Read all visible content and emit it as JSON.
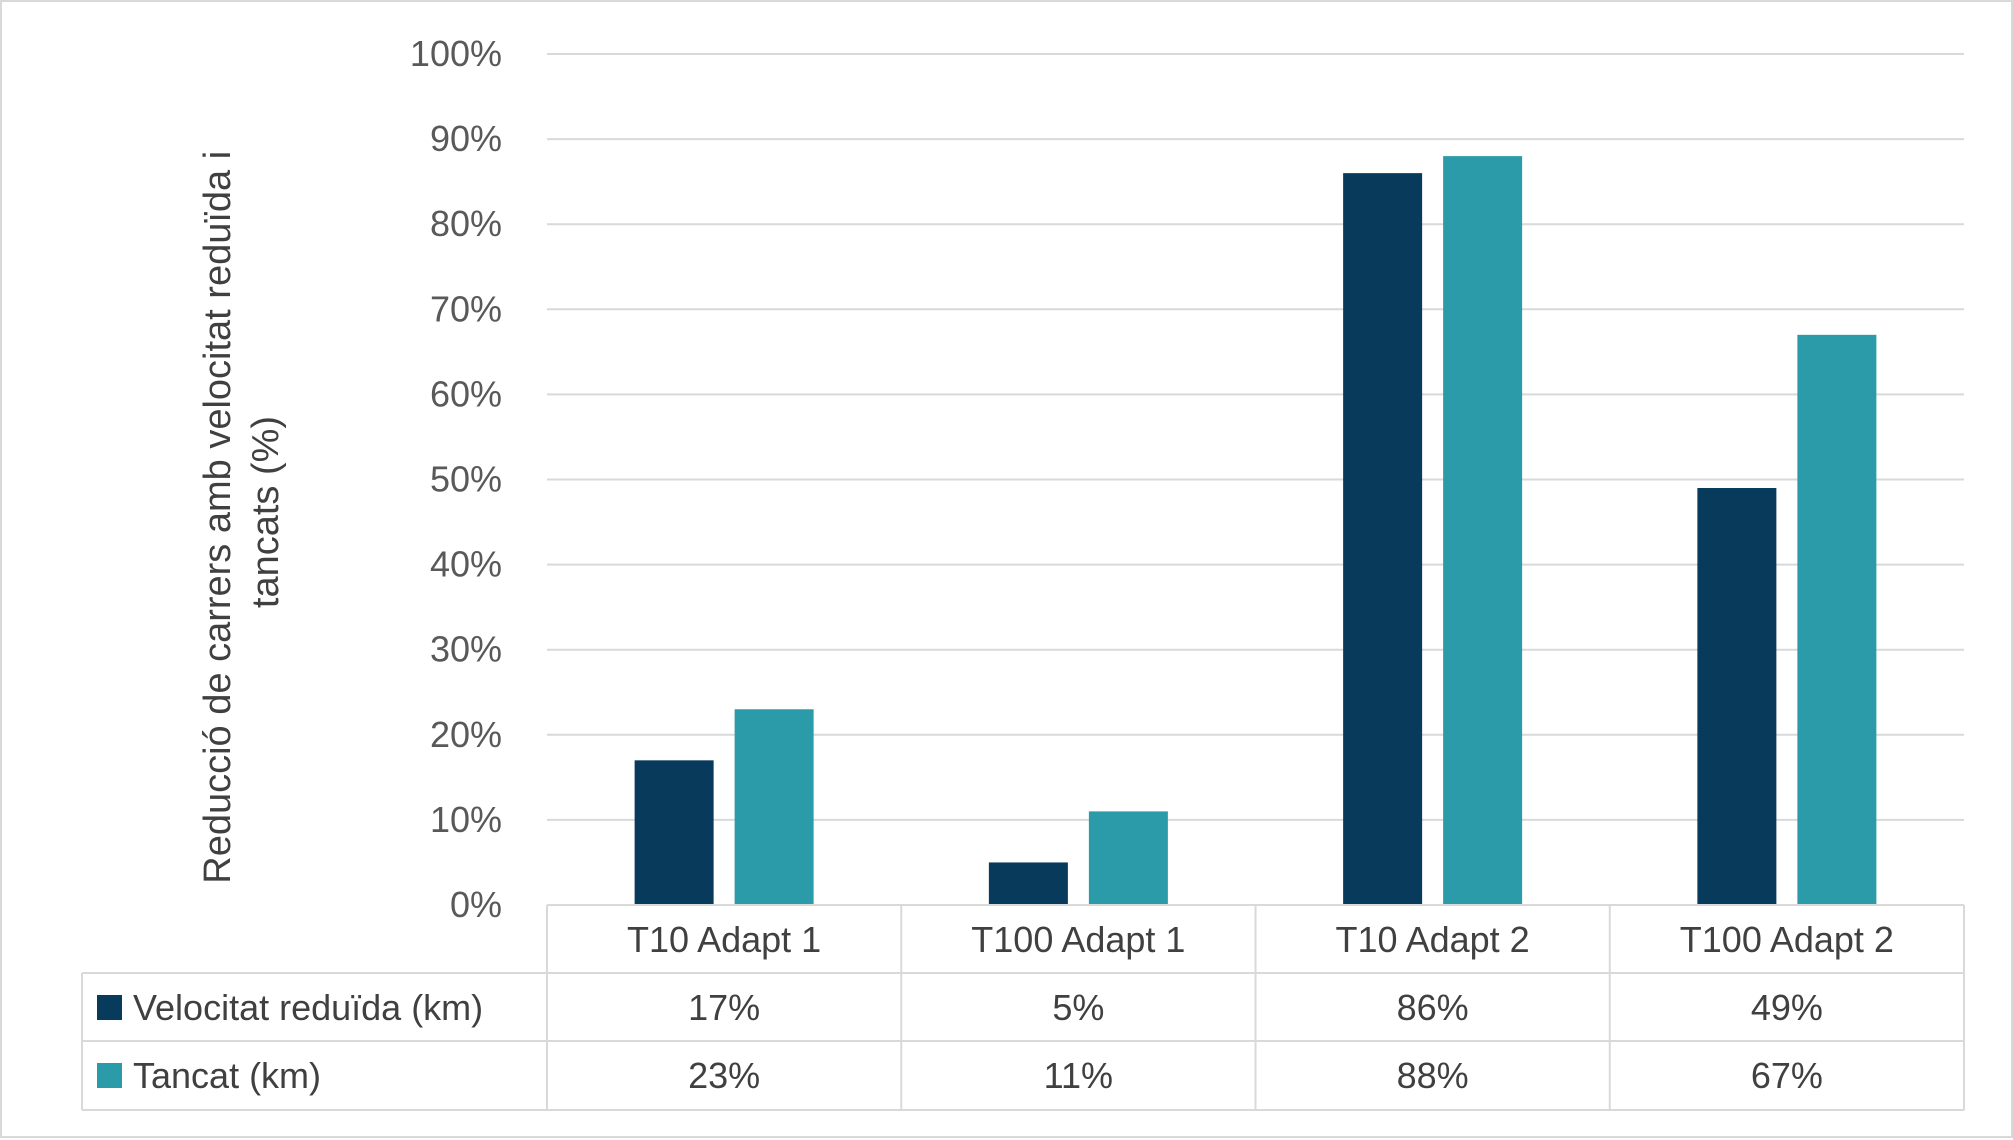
{
  "chart_data": {
    "type": "bar",
    "ylabel_lines": [
      "Reducció de carrers amb velocitat reduïda i",
      "tancats (%)"
    ],
    "categories": [
      "T10 Adapt 1",
      "T100 Adapt 1",
      "T10 Adapt 2",
      "T100 Adapt 2"
    ],
    "series": [
      {
        "name": "Velocitat reduïda (km)",
        "color": "#083a5c",
        "values": [
          17,
          5,
          86,
          49
        ],
        "labels": [
          "17%",
          "5%",
          "86%",
          "49%"
        ]
      },
      {
        "name": "Tancat (km)",
        "color": "#2c9ba9",
        "values": [
          23,
          11,
          88,
          67
        ],
        "labels": [
          "23%",
          "11%",
          "88%",
          "67%"
        ]
      }
    ],
    "ylim": [
      0,
      100
    ],
    "yticks": [
      "0%",
      "10%",
      "20%",
      "30%",
      "40%",
      "50%",
      "60%",
      "70%",
      "80%",
      "90%",
      "100%"
    ],
    "grid": true,
    "legend": "data table below chart"
  }
}
